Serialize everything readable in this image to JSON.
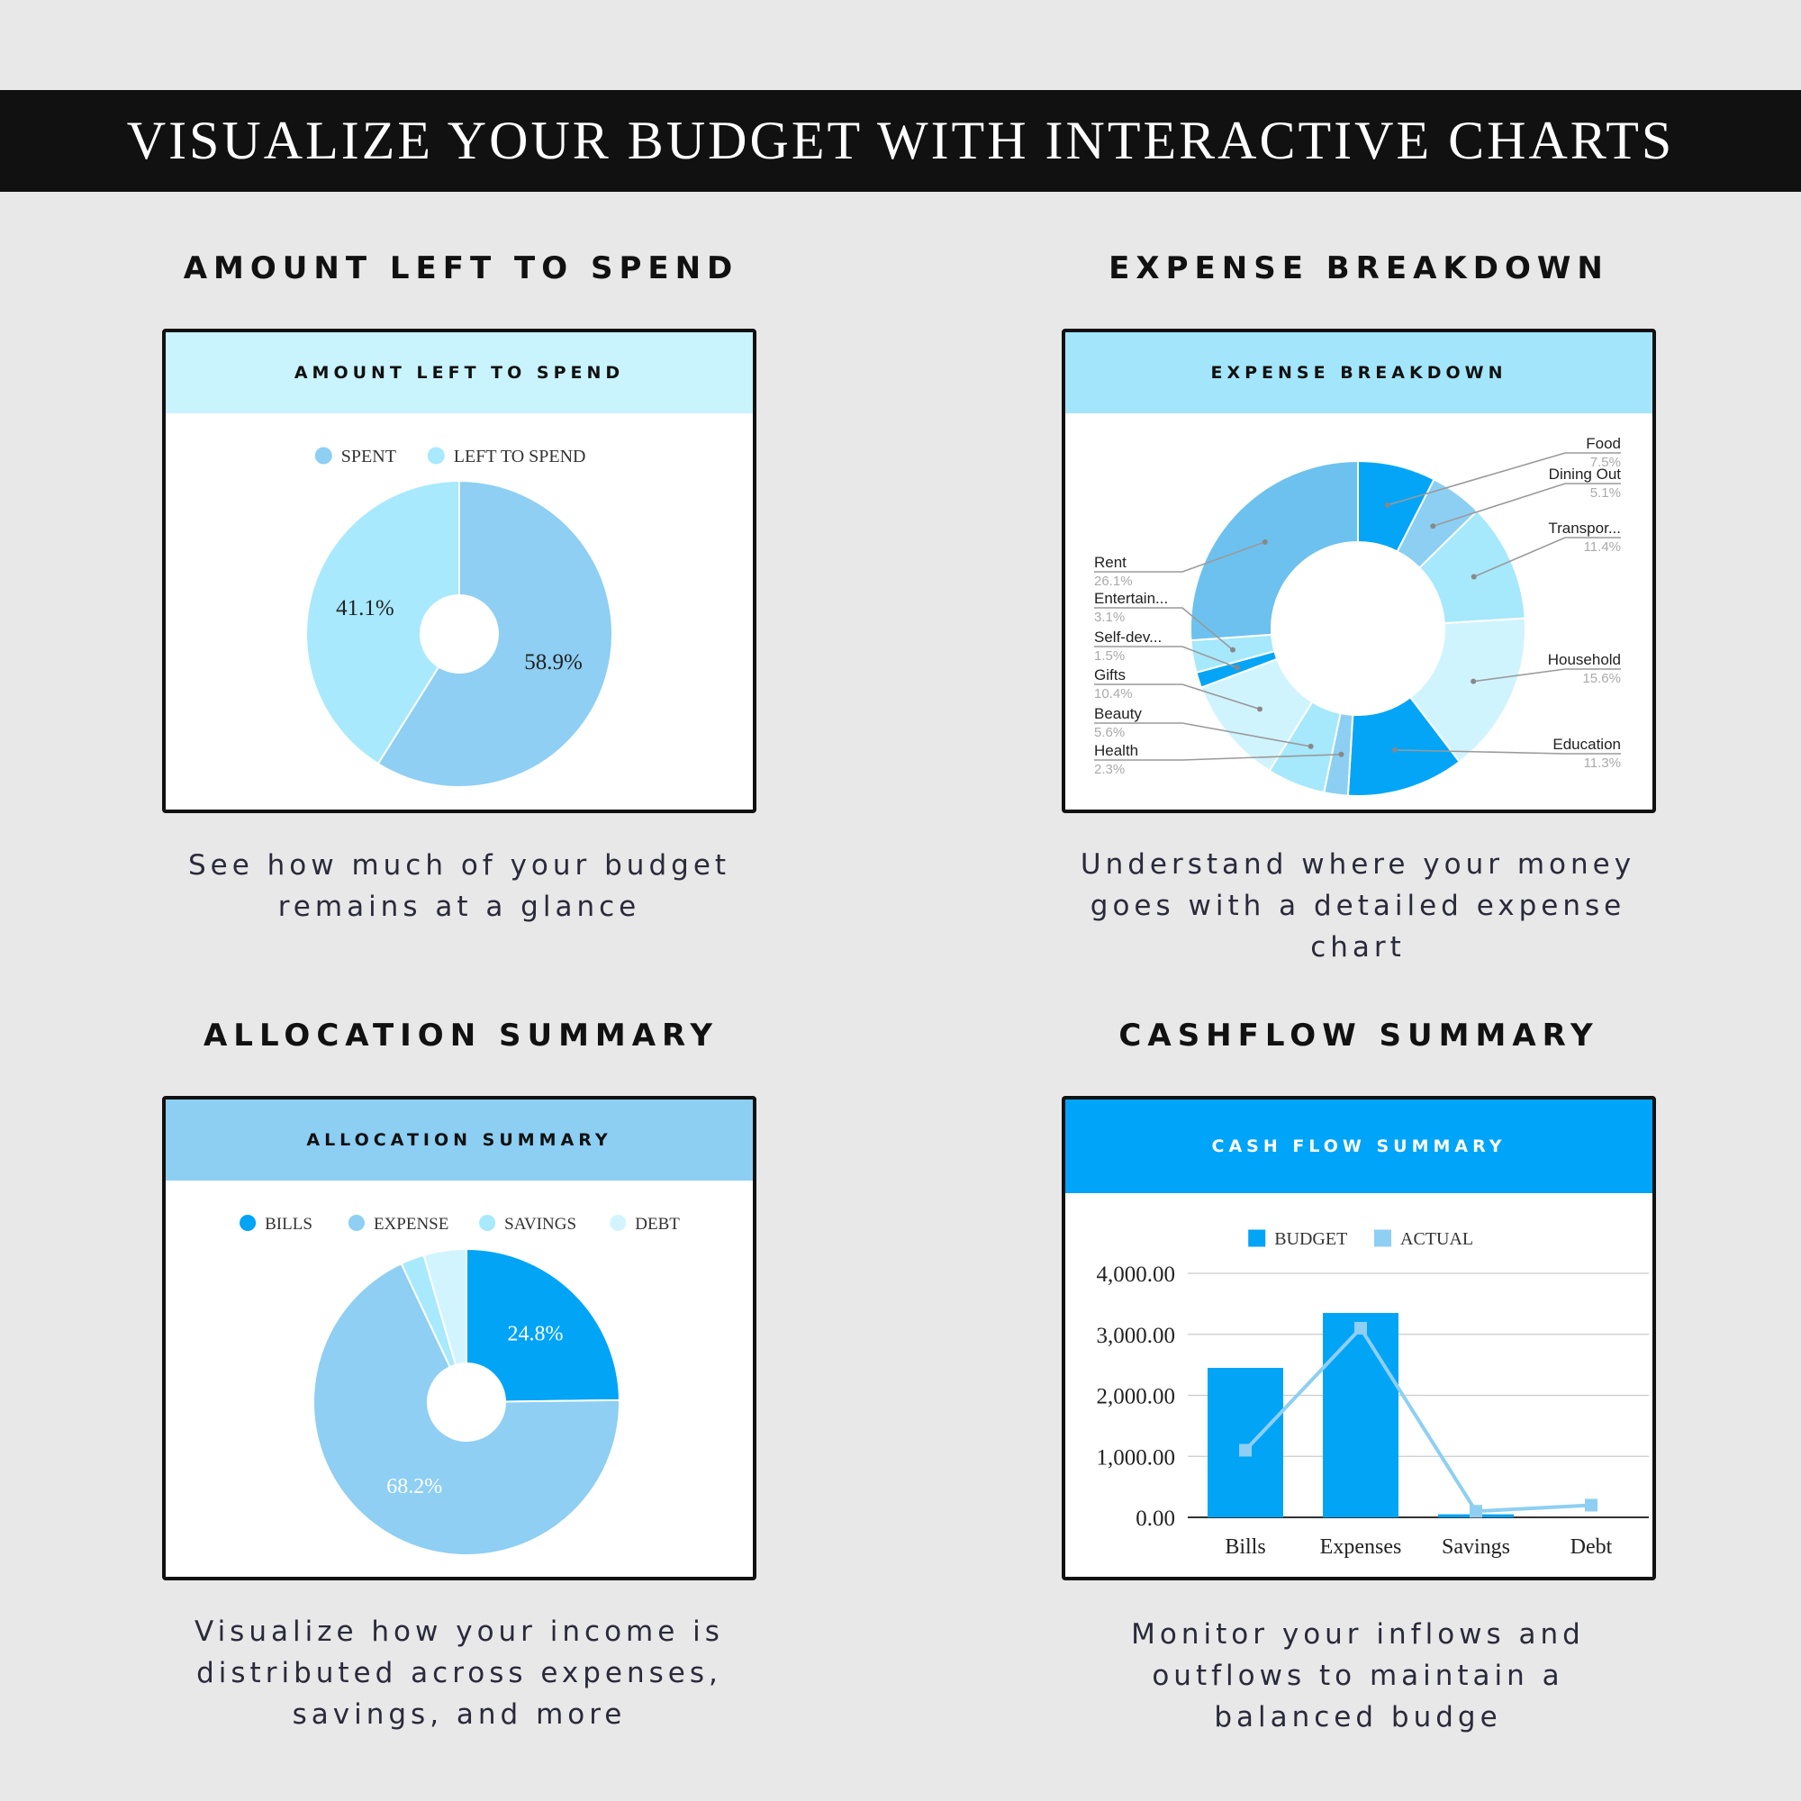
{
  "banner": {
    "title": "VISUALIZE YOUR BUDGET WITH INTERACTIVE CHARTS"
  },
  "panels": {
    "left_to_spend": {
      "heading": "AMOUNT LEFT TO SPEND",
      "card_title": "AMOUNT LEFT TO SPEND",
      "caption_line1": "See how much of your budget",
      "caption_line2": "remains at a glance"
    },
    "expense": {
      "heading": "EXPENSE BREAKDOWN",
      "card_title": "EXPENSE BREAKDOWN",
      "caption_line1": "Understand where your money",
      "caption_line2": "goes with a detailed expense",
      "caption_line3": "chart"
    },
    "allocation": {
      "heading": "ALLOCATION SUMMARY",
      "card_title": "ALLOCATION SUMMARY",
      "caption_line1": "Visualize how your income is",
      "caption_line2": "distributed across expenses,",
      "caption_line3": "savings, and more"
    },
    "cashflow": {
      "heading": "CASHFLOW SUMMARY",
      "card_title": "CASH FLOW SUMMARY",
      "caption_line1": "Monitor your inflows and",
      "caption_line2": "outflows to maintain a",
      "caption_line3": "balanced budge"
    }
  },
  "colors": {
    "header_light": "#c9f3fd",
    "header_mid": "#a3e6fc",
    "header_sky": "#8ccff3",
    "header_blue": "#00a4f8",
    "spent": "#8ecff3",
    "left": "#a8e9fd",
    "bills": "#02a4f6",
    "expense": "#8ecff3",
    "savings": "#a8e9fd",
    "debt": "#d2f4fe"
  },
  "chart_data": [
    {
      "type": "pie",
      "legend_position": "top",
      "slices": [
        {
          "label": "SPENT",
          "value": 58.9,
          "display": "58.9%",
          "color": "#8ecff3"
        },
        {
          "label": "LEFT TO SPEND",
          "value": 41.1,
          "display": "41.1%",
          "color": "#a8e9fd"
        }
      ]
    },
    {
      "type": "pie",
      "legend_position": "side-labels",
      "slices": [
        {
          "label": "Food",
          "value": 7.5,
          "display": "7.5%",
          "color": "#04a5f6",
          "side": "right"
        },
        {
          "label": "Dining Out",
          "value": 5.1,
          "display": "5.1%",
          "color": "#8ccff3",
          "side": "right"
        },
        {
          "label": "Transpor...",
          "value": 11.4,
          "display": "11.4%",
          "color": "#a6e8fc",
          "side": "right"
        },
        {
          "label": "Household",
          "value": 15.6,
          "display": "15.6%",
          "color": "#d0f4fe",
          "side": "right"
        },
        {
          "label": "Education",
          "value": 11.3,
          "display": "11.3%",
          "color": "#04a5f6",
          "side": "right"
        },
        {
          "label": "Health",
          "value": 2.3,
          "display": "2.3%",
          "color": "#8ccff3",
          "side": "left"
        },
        {
          "label": "Beauty",
          "value": 5.6,
          "display": "5.6%",
          "color": "#a6e8fc",
          "side": "left"
        },
        {
          "label": "Gifts",
          "value": 10.4,
          "display": "10.4%",
          "color": "#d0f4fe",
          "side": "left"
        },
        {
          "label": "Self-dev...",
          "value": 1.5,
          "display": "1.5%",
          "color": "#04a5f6",
          "side": "left"
        },
        {
          "label": "Entertain...",
          "value": 3.1,
          "display": "3.1%",
          "color": "#a6e8fc",
          "side": "left"
        },
        {
          "label": "Rent",
          "value": 26.1,
          "display": "26.1%",
          "color": "#6dc1ef",
          "side": "left"
        }
      ]
    },
    {
      "type": "pie",
      "legend_position": "top",
      "slices": [
        {
          "label": "BILLS",
          "value": 24.8,
          "display": "24.8%",
          "color": "#02a4f6"
        },
        {
          "label": "EXPENSE",
          "value": 68.2,
          "display": "68.2%",
          "color": "#8ecff3"
        },
        {
          "label": "SAVINGS",
          "value": 2.5,
          "display": "",
          "color": "#a8e9fd"
        },
        {
          "label": "DEBT",
          "value": 4.5,
          "display": "",
          "color": "#d2f4fe"
        }
      ]
    },
    {
      "type": "bar",
      "legend_position": "top",
      "categories": [
        "Bills",
        "Expenses",
        "Savings",
        "Debt"
      ],
      "series": [
        {
          "name": "BUDGET",
          "type": "bar",
          "color": "#02a4f6",
          "values": [
            2450,
            3350,
            50,
            0
          ]
        },
        {
          "name": "ACTUAL",
          "type": "line",
          "color": "#8ecff3",
          "values": [
            1100,
            3100,
            100,
            200
          ]
        }
      ],
      "yticks": [
        "4,000.00",
        "3,000.00",
        "2,000.00",
        "1,000.00",
        "0.00"
      ],
      "ylim": [
        0,
        4000
      ],
      "grid": true
    }
  ]
}
